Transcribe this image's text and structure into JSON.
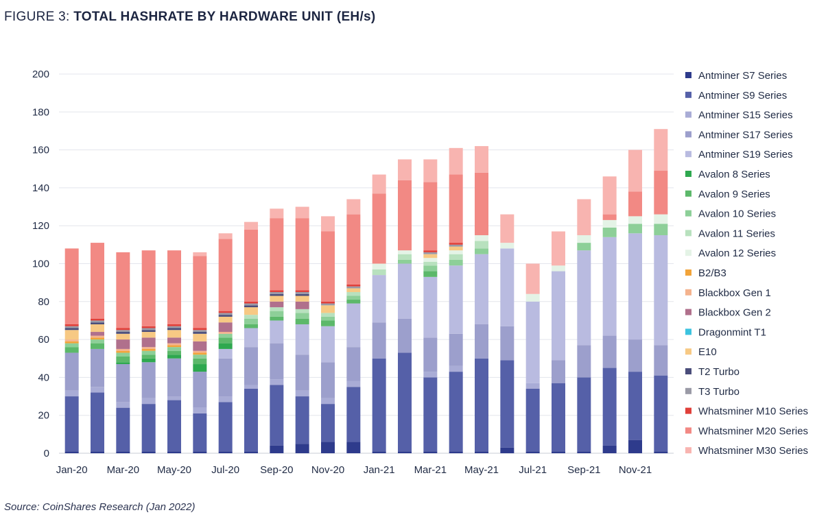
{
  "title": {
    "prefix": "FIGURE 3:",
    "main": "TOTAL HASHRATE BY HARDWARE UNIT (EH/s)"
  },
  "source": "Source: CoinShares Research (Jan 2022)",
  "chart_data": {
    "type": "bar",
    "stacked": true,
    "ylim": [
      0,
      200
    ],
    "yticks": [
      0,
      20,
      40,
      60,
      80,
      100,
      120,
      140,
      160,
      180,
      200
    ],
    "grid": true,
    "legend_position": "right",
    "xlabel": "",
    "ylabel": "",
    "categories": [
      "Jan-20",
      "Feb-20",
      "Mar-20",
      "Apr-20",
      "May-20",
      "Jun-20",
      "Jul-20",
      "Aug-20",
      "Sep-20",
      "Oct-20",
      "Nov-20",
      "Dec-20",
      "Jan-21",
      "Feb-21",
      "Mar-21",
      "Apr-21",
      "May-21",
      "Jun-21",
      "Jul-21",
      "Aug-21",
      "Sep-21",
      "Oct-21",
      "Nov-21",
      "Dec-21"
    ],
    "xtick_labels": [
      "Jan-20",
      "",
      "Mar-20",
      "",
      "May-20",
      "",
      "Jul-20",
      "",
      "Sep-20",
      "",
      "Nov-20",
      "",
      "Jan-21",
      "",
      "Mar-21",
      "",
      "May-21",
      "",
      "Jul-21",
      "",
      "Sep-21",
      "",
      "Nov-21",
      ""
    ],
    "series": [
      {
        "name": "Antminer S7 Series",
        "color": "#2e3b8c",
        "values": [
          1,
          1,
          1,
          1,
          1,
          1,
          1,
          1,
          4,
          5,
          6,
          6,
          1,
          1,
          1,
          1,
          1,
          3,
          1,
          1,
          1,
          4,
          7,
          1
        ]
      },
      {
        "name": "Antminer S9 Series",
        "color": "#5560a8",
        "values": [
          29,
          31,
          23,
          25,
          27,
          20,
          26,
          33,
          32,
          25,
          20,
          29,
          49,
          52,
          39,
          42,
          49,
          46,
          33,
          36,
          39,
          41,
          36,
          40
        ]
      },
      {
        "name": "Antminer S15 Series",
        "color": "#a9acd6",
        "values": [
          3,
          3,
          3,
          3,
          2,
          3,
          3,
          2,
          3,
          3,
          3,
          3,
          0,
          0,
          3,
          3,
          0,
          0,
          3,
          0,
          0,
          0,
          0,
          0
        ]
      },
      {
        "name": "Antminer S17 Series",
        "color": "#9c9fcc",
        "values": [
          20,
          20,
          20,
          19,
          20,
          19,
          20,
          20,
          19,
          19,
          19,
          18,
          19,
          18,
          18,
          17,
          18,
          18,
          0,
          12,
          17,
          17,
          17,
          16
        ]
      },
      {
        "name": "Antminer S19 Series",
        "color": "#b9bbe0",
        "values": [
          0,
          0,
          0,
          0,
          0,
          0,
          5,
          10,
          12,
          16,
          19,
          23,
          25,
          29,
          32,
          36,
          37,
          41,
          43,
          47,
          50,
          52,
          56,
          58
        ]
      },
      {
        "name": "Avalon 8 Series",
        "color": "#2ea84f",
        "values": [
          0,
          0,
          1,
          2,
          2,
          4,
          3,
          0,
          0,
          0,
          0,
          0,
          0,
          0,
          0,
          0,
          0,
          0,
          0,
          0,
          0,
          0,
          0,
          0
        ]
      },
      {
        "name": "Avalon 9 Series",
        "color": "#5cb86a",
        "values": [
          3,
          3,
          3,
          2,
          2,
          3,
          3,
          2,
          2,
          3,
          3,
          2,
          0,
          0,
          3,
          0,
          0,
          0,
          0,
          0,
          0,
          0,
          0,
          0
        ]
      },
      {
        "name": "Avalon 10 Series",
        "color": "#8dcf98",
        "values": [
          2,
          2,
          2,
          2,
          2,
          2,
          2,
          3,
          3,
          3,
          2,
          2,
          0,
          2,
          3,
          3,
          3,
          0,
          0,
          0,
          4,
          5,
          5,
          6
        ]
      },
      {
        "name": "Avalon 11 Series",
        "color": "#b8e1be",
        "values": [
          0,
          0,
          0,
          0,
          0,
          0,
          0,
          2,
          2,
          2,
          2,
          2,
          3,
          3,
          2,
          3,
          4,
          0,
          0,
          0,
          0,
          0,
          0,
          0
        ]
      },
      {
        "name": "Avalon 12 Series",
        "color": "#e4f3e6",
        "values": [
          0,
          0,
          0,
          0,
          0,
          0,
          0,
          0,
          0,
          0,
          0,
          0,
          3,
          2,
          2,
          2,
          3,
          3,
          4,
          3,
          4,
          4,
          4,
          5
        ]
      },
      {
        "name": "B2/B3",
        "color": "#f2a43a",
        "values": [
          1,
          1,
          1,
          1,
          1,
          1,
          0,
          0,
          0,
          0,
          0,
          0,
          0,
          0,
          0,
          0,
          0,
          0,
          0,
          0,
          0,
          0,
          0,
          0
        ]
      },
      {
        "name": "Blackbox Gen 1",
        "color": "#f4b38e",
        "values": [
          1,
          1,
          1,
          1,
          1,
          1,
          1,
          0,
          0,
          0,
          0,
          0,
          0,
          0,
          0,
          0,
          0,
          0,
          0,
          0,
          0,
          0,
          0,
          0
        ]
      },
      {
        "name": "Blackbox Gen 2",
        "color": "#b0708c",
        "values": [
          0,
          2,
          5,
          5,
          3,
          5,
          5,
          0,
          3,
          4,
          0,
          0,
          0,
          0,
          0,
          0,
          0,
          0,
          0,
          0,
          0,
          0,
          0,
          0
        ]
      },
      {
        "name": "Dragonmint T1",
        "color": "#3cc3df",
        "values": [
          0,
          0,
          0,
          0,
          0,
          0,
          0,
          0,
          0,
          0,
          0,
          0,
          0,
          0,
          0,
          0,
          0,
          0,
          0,
          0,
          0,
          0,
          0,
          0
        ]
      },
      {
        "name": "E10",
        "color": "#f7c984",
        "values": [
          5,
          4,
          3,
          3,
          4,
          4,
          3,
          4,
          3,
          3,
          4,
          2,
          0,
          0,
          2,
          2,
          0,
          0,
          0,
          0,
          0,
          0,
          0,
          0
        ]
      },
      {
        "name": "T2 Turbo",
        "color": "#4a4d7a",
        "values": [
          1,
          1,
          1,
          1,
          1,
          1,
          1,
          1,
          1,
          1,
          0,
          0,
          0,
          0,
          0,
          0,
          0,
          0,
          0,
          0,
          0,
          0,
          0,
          0
        ]
      },
      {
        "name": "T3 Turbo",
        "color": "#9a9aa6",
        "values": [
          1,
          1,
          1,
          1,
          1,
          1,
          1,
          1,
          1,
          1,
          1,
          1,
          0,
          0,
          1,
          1,
          0,
          0,
          0,
          0,
          0,
          0,
          0,
          0
        ]
      },
      {
        "name": "Whatsminer M10 Series",
        "color": "#e0403a",
        "values": [
          1,
          1,
          1,
          1,
          1,
          1,
          1,
          1,
          1,
          1,
          1,
          1,
          0,
          0,
          1,
          1,
          0,
          0,
          0,
          0,
          0,
          0,
          0,
          0
        ]
      },
      {
        "name": "Whatsminer M20 Series",
        "color": "#f28984",
        "values": [
          40,
          40,
          40,
          40,
          39,
          38,
          38,
          38,
          38,
          38,
          37,
          37,
          37,
          37,
          36,
          36,
          33,
          0,
          0,
          0,
          0,
          3,
          13,
          23
        ]
      },
      {
        "name": "Whatsminer M30 Series",
        "color": "#f8b4b0",
        "values": [
          0,
          0,
          0,
          0,
          0,
          2,
          3,
          4,
          5,
          6,
          8,
          8,
          10,
          11,
          12,
          14,
          14,
          15,
          16,
          18,
          19,
          20,
          22,
          22
        ]
      }
    ]
  }
}
